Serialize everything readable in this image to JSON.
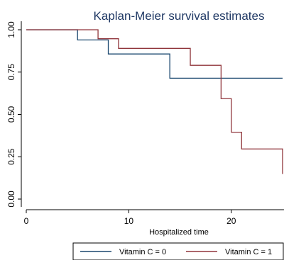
{
  "chart_data": {
    "type": "line",
    "step": true,
    "title": "Kaplan-Meier survival estimates",
    "xlabel": "Hospitalized time",
    "ylabel": "",
    "xlim": [
      0,
      25
    ],
    "ylim": [
      0,
      1
    ],
    "xticks": [
      0,
      10,
      20
    ],
    "yticks": [
      0,
      0.25,
      0.5,
      0.75,
      1
    ],
    "ytick_labels": [
      "0.00",
      "0.25",
      "0.50",
      "0.75",
      "1.00"
    ],
    "grid": false,
    "legend_position": "bottom",
    "series": [
      {
        "name": "Vitamin C = 0",
        "color": "#1a476f",
        "points": [
          [
            0,
            1.0
          ],
          [
            5,
            1.0
          ],
          [
            5,
            0.94
          ],
          [
            8,
            0.94
          ],
          [
            8,
            0.857
          ],
          [
            14,
            0.857
          ],
          [
            14,
            0.714
          ],
          [
            25,
            0.714
          ]
        ]
      },
      {
        "name": "Vitamin C = 1",
        "color": "#90353b",
        "points": [
          [
            0,
            1.0
          ],
          [
            7,
            1.0
          ],
          [
            7,
            0.947
          ],
          [
            9,
            0.947
          ],
          [
            9,
            0.89
          ],
          [
            16,
            0.89
          ],
          [
            16,
            0.79
          ],
          [
            19,
            0.79
          ],
          [
            19,
            0.593
          ],
          [
            20,
            0.593
          ],
          [
            20,
            0.395
          ],
          [
            21,
            0.395
          ],
          [
            21,
            0.296
          ],
          [
            25,
            0.296
          ],
          [
            25,
            0.148
          ]
        ]
      }
    ]
  }
}
